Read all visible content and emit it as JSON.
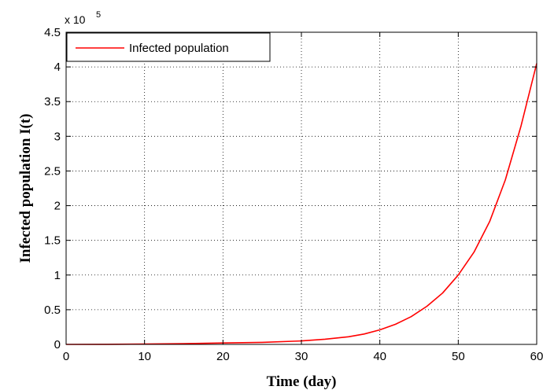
{
  "chart_data": {
    "type": "line",
    "xlabel": "Time (day)",
    "ylabel": "Infected population I(t)",
    "xlim": [
      0,
      60
    ],
    "ylim": [
      0,
      4.5
    ],
    "y_multiplier": {
      "base": "x 10",
      "exponent": "5"
    },
    "x_ticks": [
      "0",
      "10",
      "20",
      "30",
      "40",
      "50",
      "60"
    ],
    "y_ticks": [
      "0",
      "0.5",
      "1",
      "1.5",
      "2",
      "2.5",
      "3",
      "3.5",
      "4",
      "4.5"
    ],
    "grid": true,
    "legend_position": "top-left",
    "series": [
      {
        "name": "Infected population",
        "color": "#ff0000",
        "x": [
          0,
          5,
          10,
          15,
          20,
          25,
          30,
          33,
          36,
          38,
          40,
          42,
          44,
          46,
          48,
          50,
          52,
          54,
          56,
          58,
          60
        ],
        "y": [
          0.0,
          0.001,
          0.004,
          0.011,
          0.02,
          0.03,
          0.05,
          0.075,
          0.11,
          0.15,
          0.21,
          0.29,
          0.4,
          0.55,
          0.74,
          1.0,
          1.33,
          1.77,
          2.37,
          3.15,
          4.05
        ]
      }
    ]
  }
}
